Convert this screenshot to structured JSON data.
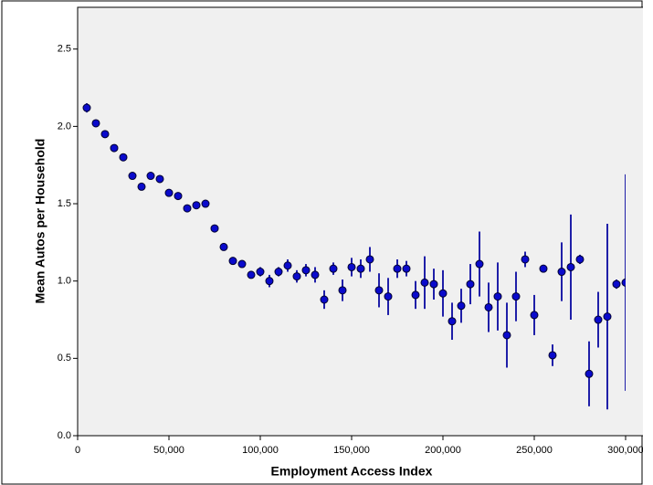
{
  "chart_data": {
    "type": "scatter",
    "x_label": "Employment Access Index",
    "y_label": "Mean Autos per Household",
    "color": "#0a0acc",
    "error_color": "#1f1fa8",
    "xlim": [
      0,
      300000
    ],
    "ylim": [
      0,
      2.77
    ],
    "xticks": [
      0,
      {
        "value": 50000,
        "label": "50,000"
      },
      {
        "value": 100000,
        "label": "100,000"
      },
      {
        "value": 150000,
        "label": "150,000"
      },
      {
        "value": 200000,
        "label": "200,000"
      },
      {
        "value": 250000,
        "label": "250,000"
      },
      {
        "value": 300000,
        "label": "300,000"
      }
    ],
    "yticks": [
      {
        "value": 0,
        "label": "0.0"
      },
      0.5,
      {
        "value": 1,
        "label": "1.0"
      },
      1.5,
      {
        "value": 2,
        "label": "2.0"
      },
      2.5
    ],
    "x": [
      5000,
      10000,
      15000,
      20000,
      25000,
      30000,
      35000,
      40000,
      45000,
      50000,
      55000,
      60000,
      65000,
      70000,
      75000,
      80000,
      85000,
      90000,
      95000,
      100000,
      105000,
      110000,
      115000,
      120000,
      125000,
      130000,
      135000,
      140000,
      145000,
      150000,
      155000,
      160000,
      165000,
      170000,
      175000,
      180000,
      185000,
      190000,
      195000,
      200000,
      205000,
      210000,
      215000,
      220000,
      225000,
      230000,
      235000,
      240000,
      245000,
      250000,
      255000,
      260000,
      265000,
      270000,
      275000,
      280000,
      285000,
      290000,
      295000,
      300000
    ],
    "values": [
      2.12,
      2.02,
      1.95,
      1.86,
      1.8,
      1.68,
      1.61,
      1.68,
      1.66,
      1.57,
      1.55,
      1.47,
      1.49,
      1.5,
      1.34,
      1.22,
      1.13,
      1.11,
      1.04,
      1.06,
      1.0,
      1.06,
      1.1,
      1.03,
      1.07,
      1.04,
      0.88,
      1.08,
      0.94,
      1.09,
      1.08,
      1.14,
      0.94,
      0.9,
      1.08,
      1.08,
      0.91,
      0.99,
      0.98,
      0.92,
      0.74,
      0.84,
      0.98,
      1.11,
      0.83,
      0.9,
      0.65,
      0.9,
      1.14,
      0.78,
      1.08,
      0.52,
      1.06,
      1.09,
      1.14,
      0.4,
      0.75,
      0.77,
      0.98,
      0.99
    ],
    "errors": [
      0.03,
      0.02,
      0.02,
      0.02,
      0.02,
      0.02,
      0.02,
      0.02,
      0.02,
      0.02,
      0.02,
      0.02,
      0.02,
      0.02,
      0.02,
      0.02,
      0.02,
      0.02,
      0.02,
      0.03,
      0.04,
      0.03,
      0.04,
      0.04,
      0.04,
      0.05,
      0.06,
      0.04,
      0.07,
      0.06,
      0.06,
      0.08,
      0.11,
      0.12,
      0.06,
      0.05,
      0.09,
      0.17,
      0.1,
      0.15,
      0.12,
      0.11,
      0.13,
      0.21,
      0.16,
      0.22,
      0.21,
      0.16,
      0.05,
      0.13,
      0.02,
      0.07,
      0.19,
      0.34,
      0.03,
      0.21,
      0.18,
      0.6,
      0.03,
      0.7
    ]
  }
}
